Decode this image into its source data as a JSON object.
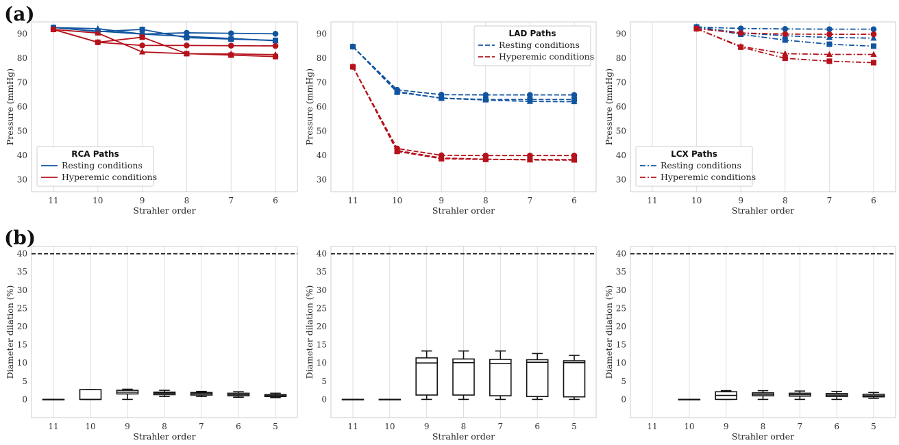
{
  "panel_labels": {
    "a": "(a)",
    "b": "(b)"
  },
  "colors": {
    "resting": "#1155a0",
    "hyperemic": "#b5121b",
    "grid": "#dddddd",
    "frame": "#cccccc"
  },
  "chart_data": [
    {
      "id": "rca",
      "type": "line",
      "row": "a",
      "legend_title": "RCA Paths",
      "legend_position": "lower-left",
      "legend_entries": [
        "Resting conditions",
        "Hyperemic conditions"
      ],
      "line_style": "solid",
      "x": [
        "11",
        "10",
        "9",
        "8",
        "7",
        "6"
      ],
      "xlabel": "Strahler order",
      "ylabel": "Pressure (mmHg)",
      "ylim": [
        25,
        95
      ],
      "yticks": [
        30,
        40,
        50,
        60,
        70,
        80,
        90
      ],
      "series": [
        {
          "condition": "resting",
          "marker": "circle",
          "values": [
            92.7,
            91.2,
            90.0,
            90.5,
            90.3,
            90.1
          ]
        },
        {
          "condition": "resting",
          "marker": "square",
          "values": [
            92.7,
            91.0,
            91.9,
            88.5,
            87.9,
            87.4
          ]
        },
        {
          "condition": "resting",
          "marker": "triangle",
          "values": [
            92.7,
            92.2,
            90.0,
            89.0,
            88.2,
            87.2
          ]
        },
        {
          "condition": "hyperemic",
          "marker": "circle",
          "values": [
            91.9,
            86.6,
            85.3,
            85.3,
            85.2,
            85.1
          ]
        },
        {
          "condition": "hyperemic",
          "marker": "square",
          "values": [
            91.9,
            86.6,
            88.7,
            81.9,
            81.3,
            80.7
          ]
        },
        {
          "condition": "hyperemic",
          "marker": "triangle",
          "values": [
            91.9,
            90.4,
            82.6,
            81.9,
            81.8,
            81.5
          ]
        }
      ]
    },
    {
      "id": "lad",
      "type": "line",
      "row": "a",
      "legend_title": "LAD Paths",
      "legend_position": "upper-right",
      "legend_entries": [
        "Resting conditions",
        "Hyperemic conditions"
      ],
      "line_style": "dashed",
      "x": [
        "11",
        "10",
        "9",
        "8",
        "7",
        "6"
      ],
      "xlabel": "Strahler order",
      "ylabel": "Pressure (mmHg)",
      "ylim": [
        25,
        95
      ],
      "yticks": [
        30,
        40,
        50,
        60,
        70,
        80,
        90
      ],
      "series": [
        {
          "condition": "resting",
          "marker": "circle",
          "values": [
            84.8,
            67.0,
            65.0,
            64.9,
            64.9,
            64.9
          ]
        },
        {
          "condition": "resting",
          "marker": "square",
          "values": [
            84.8,
            66.0,
            63.6,
            63.0,
            63.0,
            63.0
          ]
        },
        {
          "condition": "resting",
          "marker": "triangle",
          "values": [
            84.8,
            66.3,
            63.5,
            62.8,
            62.2,
            62.1
          ]
        },
        {
          "condition": "hyperemic",
          "marker": "circle",
          "values": [
            76.5,
            42.8,
            40.0,
            39.9,
            39.9,
            39.9
          ]
        },
        {
          "condition": "hyperemic",
          "marker": "square",
          "values": [
            76.5,
            41.6,
            38.6,
            38.3,
            38.3,
            38.2
          ]
        },
        {
          "condition": "hyperemic",
          "marker": "triangle",
          "values": [
            76.5,
            42.0,
            38.9,
            38.4,
            38.1,
            38.0
          ]
        }
      ]
    },
    {
      "id": "lcx",
      "type": "line",
      "row": "a",
      "legend_title": "LCX Paths",
      "legend_position": "lower-left",
      "legend_entries": [
        "Resting conditions",
        "Hyperemic conditions"
      ],
      "line_style": "dashdot",
      "x": [
        "11",
        "10",
        "9",
        "8",
        "7",
        "6"
      ],
      "xlabel": "Strahler order",
      "ylabel": "Pressure (mmHg)",
      "ylim": [
        25,
        95
      ],
      "yticks": [
        30,
        40,
        50,
        60,
        70,
        80,
        90
      ],
      "series": [
        {
          "condition": "resting",
          "marker": "circle",
          "values": [
            null,
            92.9,
            92.3,
            92.1,
            92.0,
            92.0
          ]
        },
        {
          "condition": "resting",
          "marker": "square",
          "values": [
            null,
            92.9,
            89.9,
            87.5,
            85.8,
            85.0
          ]
        },
        {
          "condition": "resting",
          "marker": "triangle",
          "values": [
            null,
            92.9,
            90.5,
            89.3,
            88.6,
            88.3
          ]
        },
        {
          "condition": "hyperemic",
          "marker": "circle",
          "values": [
            null,
            92.2,
            90.4,
            90.0,
            89.9,
            89.9
          ]
        },
        {
          "condition": "hyperemic",
          "marker": "square",
          "values": [
            null,
            92.2,
            84.6,
            80.0,
            78.8,
            78.2
          ]
        },
        {
          "condition": "hyperemic",
          "marker": "triangle",
          "values": [
            null,
            92.2,
            84.9,
            81.9,
            81.6,
            81.6
          ]
        }
      ]
    },
    {
      "id": "box_rca",
      "type": "box",
      "row": "b",
      "categories": [
        "11",
        "10",
        "9",
        "8",
        "7",
        "6",
        "5"
      ],
      "xlabel": "Strahler order",
      "ylabel": "Diameter dilation (%)",
      "ylim": [
        -5,
        42
      ],
      "yticks": [
        0,
        5,
        10,
        15,
        20,
        25,
        30,
        35,
        40
      ],
      "reference_line": 40,
      "boxes": [
        {
          "min": 0,
          "q1": 0,
          "median": 0,
          "q3": 0,
          "max": 0
        },
        {
          "min": 0,
          "q1": 0,
          "median": 0,
          "q3": 2.7,
          "max": 2.7
        },
        {
          "min": 0,
          "q1": 1.5,
          "median": 2.0,
          "q3": 2.5,
          "max": 2.8
        },
        {
          "min": 0.8,
          "q1": 1.3,
          "median": 1.7,
          "q3": 2.0,
          "max": 2.5
        },
        {
          "min": 0.8,
          "q1": 1.2,
          "median": 1.6,
          "q3": 1.9,
          "max": 2.2
        },
        {
          "min": 0.6,
          "q1": 1.0,
          "median": 1.3,
          "q3": 1.7,
          "max": 2.1
        },
        {
          "min": 0.5,
          "q1": 0.8,
          "median": 1.0,
          "q3": 1.3,
          "max": 1.7
        }
      ]
    },
    {
      "id": "box_lad",
      "type": "box",
      "row": "b",
      "categories": [
        "11",
        "10",
        "9",
        "8",
        "7",
        "6",
        "5"
      ],
      "xlabel": "Strahler order",
      "ylabel": "Diameter dilation (%)",
      "ylim": [
        -5,
        42
      ],
      "yticks": [
        0,
        5,
        10,
        15,
        20,
        25,
        30,
        35,
        40
      ],
      "reference_line": 40,
      "boxes": [
        {
          "min": 0,
          "q1": 0,
          "median": 0,
          "q3": 0,
          "max": 0
        },
        {
          "min": 0,
          "q1": 0,
          "median": 0,
          "q3": 0,
          "max": 0
        },
        {
          "min": 0,
          "q1": 1.2,
          "median": 10.0,
          "q3": 11.4,
          "max": 13.3
        },
        {
          "min": 0,
          "q1": 1.2,
          "median": 10.1,
          "q3": 11.1,
          "max": 13.3
        },
        {
          "min": 0,
          "q1": 1.0,
          "median": 9.9,
          "q3": 11.0,
          "max": 13.3
        },
        {
          "min": 0,
          "q1": 0.8,
          "median": 10.2,
          "q3": 10.9,
          "max": 12.6
        },
        {
          "min": 0,
          "q1": 0.7,
          "median": 10.1,
          "q3": 10.6,
          "max": 12.1
        }
      ]
    },
    {
      "id": "box_lcx",
      "type": "box",
      "row": "b",
      "categories": [
        "11",
        "10",
        "9",
        "8",
        "7",
        "6",
        "5"
      ],
      "xlabel": "Strahler order",
      "ylabel": "Diameter dilation (%)",
      "ylim": [
        -5,
        42
      ],
      "yticks": [
        0,
        5,
        10,
        15,
        20,
        25,
        30,
        35,
        40
      ],
      "reference_line": 40,
      "boxes": [
        null,
        {
          "min": 0,
          "q1": 0,
          "median": 0,
          "q3": 0,
          "max": 0
        },
        {
          "min": 0,
          "q1": 0,
          "median": 1.1,
          "q3": 2.1,
          "max": 2.4
        },
        {
          "min": 0,
          "q1": 1.0,
          "median": 1.4,
          "q3": 1.8,
          "max": 2.4
        },
        {
          "min": 0,
          "q1": 0.9,
          "median": 1.3,
          "q3": 1.7,
          "max": 2.3
        },
        {
          "min": 0,
          "q1": 0.8,
          "median": 1.2,
          "q3": 1.6,
          "max": 2.2
        },
        {
          "min": 0.3,
          "q1": 0.7,
          "median": 1.0,
          "q3": 1.4,
          "max": 1.9
        }
      ]
    }
  ]
}
